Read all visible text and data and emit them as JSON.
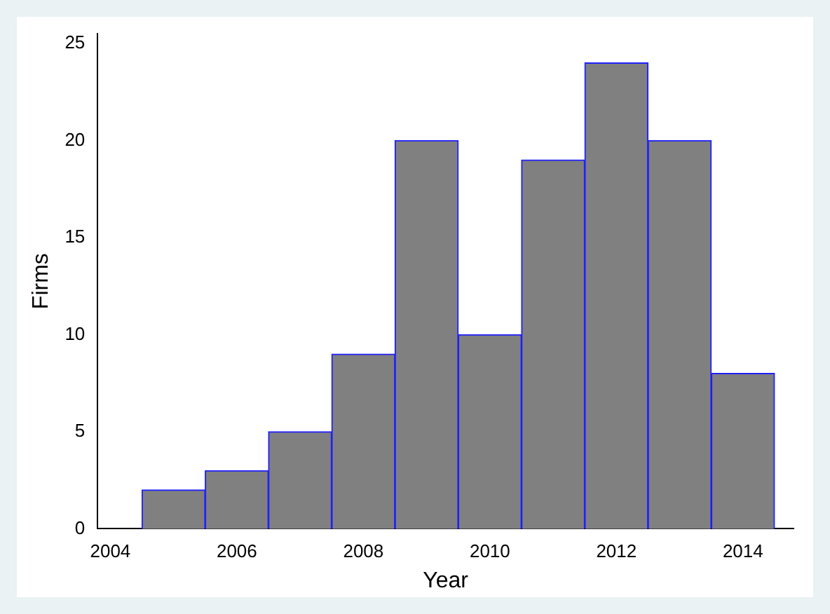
{
  "chart_data": {
    "type": "histogram",
    "xlabel": "Year",
    "ylabel": "Firms",
    "bins": [
      2004.5,
      2005.5,
      2006.5,
      2007.5,
      2008.5,
      2009.5,
      2010.5,
      2011.5,
      2012.5,
      2013.5,
      2014.5
    ],
    "values": [
      2,
      3,
      5,
      9,
      20,
      10,
      19,
      24,
      20,
      8
    ],
    "color": "#808080",
    "xlim": [
      2003.8,
      2014.8
    ],
    "xticks": [
      2004,
      2006,
      2008,
      2010,
      2012,
      2014
    ],
    "ylim": [
      0,
      25.5
    ],
    "yticks": [
      0,
      5,
      10,
      15,
      20,
      25
    ],
    "grid": false,
    "legend": false
  }
}
